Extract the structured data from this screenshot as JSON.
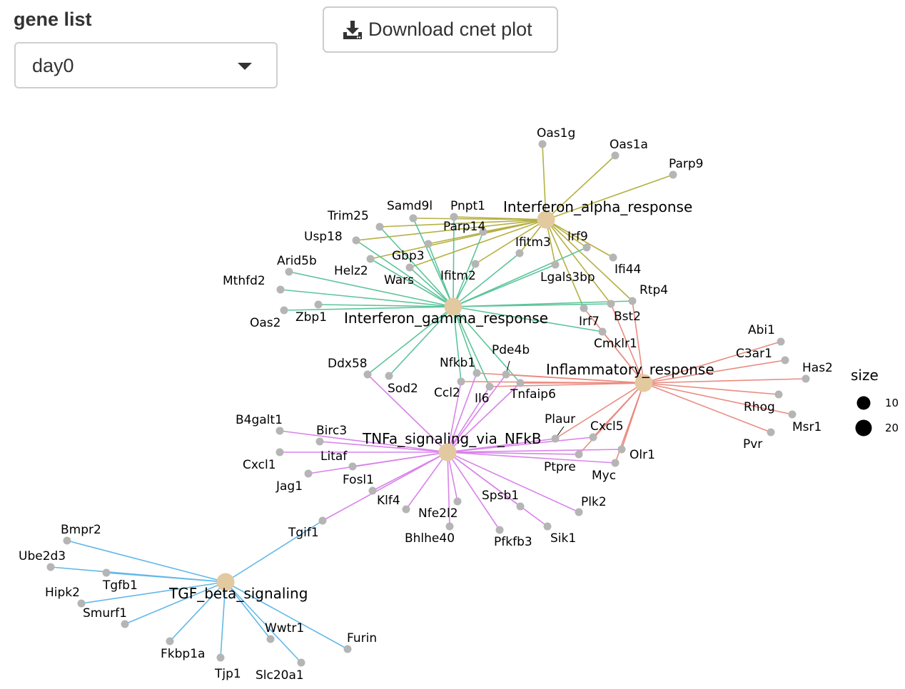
{
  "controls": {
    "gene_list_label": "gene list",
    "gene_list_value": "day0",
    "download_label": "Download cnet plot"
  },
  "legend": {
    "title": "size",
    "items": [
      "10",
      "20"
    ]
  },
  "colors": {
    "category_node": "#e3c99f",
    "gene_node": "#b5b5b5",
    "Interferon_alpha_response": "#b5b042",
    "Interferon_gamma_response": "#5cc49a",
    "Inflammatory_response": "#e98b80",
    "TNFa_signaling_via_NFkB": "#d983ea",
    "TGF_beta_signaling": "#62b8e8"
  },
  "categories": [
    "Interferon_alpha_response",
    "Interferon_gamma_response",
    "Inflammatory_response",
    "TNFa_signaling_via_NFkB",
    "TGF_beta_signaling"
  ],
  "genes": [
    "Oas1g",
    "Oas1a",
    "Parp9",
    "Pnpt1",
    "Samd9l",
    "Trim25",
    "Parp14",
    "Usp18",
    "Irf9",
    "Ifitm3",
    "Gbp3",
    "Arid5b",
    "Helz2",
    "Ifi44",
    "Lgals3bp",
    "Wars",
    "Ifitm2",
    "Mthfd2",
    "Rtp4",
    "Zbp1",
    "Oas2",
    "Bst2",
    "Irf7",
    "Cmklr1",
    "Abi1",
    "C3ar1",
    "Has2",
    "Pde4b",
    "Nfkb1",
    "Ddx58",
    "Sod2",
    "Ccl2",
    "Il6",
    "Tnfaip6",
    "Rhog",
    "Msr1",
    "Pvr",
    "B4galt1",
    "Birc3",
    "Plaur",
    "Cxcl5",
    "Cxcl1",
    "Litaf",
    "Ptpre",
    "Olr1",
    "Myc",
    "Jag1",
    "Fosl1",
    "Klf4",
    "Spsb1",
    "Plk2",
    "Nfe2l2",
    "Bhlhe40",
    "Pfkfb3",
    "Sik1",
    "Tgif1",
    "Bmpr2",
    "Ube2d3",
    "Tgfb1",
    "Hipk2",
    "Smurf1",
    "Fkbp1a",
    "Tjp1",
    "Wwtr1",
    "Slc20a1",
    "Furin"
  ],
  "edges": {
    "Interferon_alpha_response": [
      "Oas1g",
      "Oas1a",
      "Parp9",
      "Pnpt1",
      "Samd9l",
      "Trim25",
      "Parp14",
      "Usp18",
      "Irf9",
      "Ifitm3",
      "Gbp3",
      "Helz2",
      "Ifi44",
      "Lgals3bp",
      "Wars",
      "Ifitm2",
      "Rtp4",
      "Bst2",
      "Irf7"
    ],
    "Interferon_gamma_response": [
      "Samd9l",
      "Pnpt1",
      "Trim25",
      "Parp14",
      "Usp18",
      "Irf9",
      "Ifitm3",
      "Gbp3",
      "Arid5b",
      "Helz2",
      "Lgals3bp",
      "Wars",
      "Ifitm2",
      "Mthfd2",
      "Rtp4",
      "Zbp1",
      "Oas2",
      "Bst2",
      "Cmklr1",
      "Nfkb1",
      "Ddx58",
      "Sod2",
      "Ccl2",
      "Il6",
      "Tnfaip6"
    ],
    "Inflammatory_response": [
      "Abi1",
      "C3ar1",
      "Has2",
      "Rhog",
      "Msr1",
      "Pvr",
      "Irf7",
      "Rtp4",
      "Bst2",
      "Cmklr1",
      "Pde4b",
      "Nfkb1",
      "Ccl2",
      "Il6",
      "Plaur",
      "Cxcl5",
      "Ptpre",
      "Olr1",
      "Myc",
      "Tnfaip6"
    ],
    "TNFa_signaling_via_NFkB": [
      "Ddx58",
      "Nfkb1",
      "Pde4b",
      "Ccl2",
      "Il6",
      "Tnfaip6",
      "B4galt1",
      "Birc3",
      "Plaur",
      "Cxcl5",
      "Cxcl1",
      "Litaf",
      "Ptpre",
      "Olr1",
      "Myc",
      "Jag1",
      "Fosl1",
      "Klf4",
      "Spsb1",
      "Plk2",
      "Nfe2l2",
      "Bhlhe40",
      "Pfkfb3",
      "Sik1",
      "Tgif1"
    ],
    "TGF_beta_signaling": [
      "Tgif1",
      "Bmpr2",
      "Ube2d3",
      "Tgfb1",
      "Hipk2",
      "Smurf1",
      "Fkbp1a",
      "Tjp1",
      "Wwtr1",
      "Slc20a1",
      "Furin"
    ]
  }
}
